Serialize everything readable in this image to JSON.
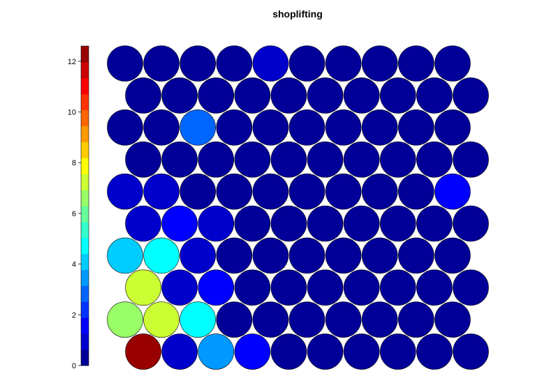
{
  "chart_data": {
    "type": "heatmap",
    "subtype": "som-hexagonal-map",
    "title": "shoplifting",
    "grid": {
      "cols": 10,
      "rows": 10,
      "odd_rows_offset": "right"
    },
    "colorbar": {
      "position": "left",
      "range": [
        0,
        12.6
      ],
      "tick_values": [
        0,
        2,
        4,
        6,
        8,
        10,
        12
      ],
      "tick_labels": [
        "0",
        "2",
        "4",
        "6",
        "8",
        "10",
        "12"
      ],
      "levels": 20,
      "colormap": "jet"
    },
    "values_top_to_bottom": [
      [
        0.2,
        0.2,
        0.2,
        0.2,
        1.0,
        0.2,
        0.2,
        0.2,
        0.2,
        0.2
      ],
      [
        0.2,
        0.2,
        0.2,
        0.2,
        0.2,
        0.2,
        0.2,
        0.2,
        0.2,
        0.2
      ],
      [
        0.2,
        0.2,
        3.0,
        0.2,
        0.2,
        0.2,
        0.2,
        0.2,
        0.2,
        0.2
      ],
      [
        0.2,
        0.2,
        0.2,
        0.2,
        0.2,
        0.2,
        0.2,
        0.2,
        0.2,
        0.2
      ],
      [
        0.8,
        0.8,
        0.2,
        0.2,
        0.2,
        0.2,
        0.2,
        0.2,
        0.2,
        1.6
      ],
      [
        0.8,
        1.6,
        1.0,
        0.2,
        0.2,
        0.2,
        0.2,
        0.2,
        0.2,
        0.2
      ],
      [
        4.0,
        5.0,
        0.8,
        0.2,
        0.2,
        0.2,
        0.2,
        0.2,
        0.2,
        0.2
      ],
      [
        7.0,
        0.8,
        1.6,
        0.2,
        0.2,
        0.2,
        0.2,
        0.2,
        0.2,
        0.2
      ],
      [
        6.5,
        7.5,
        4.8,
        0.2,
        0.2,
        0.2,
        0.2,
        0.2,
        0.2,
        0.2
      ],
      [
        12.5,
        0.8,
        3.5,
        1.6,
        0.2,
        0.2,
        0.2,
        0.2,
        0.2,
        0.2
      ]
    ]
  }
}
